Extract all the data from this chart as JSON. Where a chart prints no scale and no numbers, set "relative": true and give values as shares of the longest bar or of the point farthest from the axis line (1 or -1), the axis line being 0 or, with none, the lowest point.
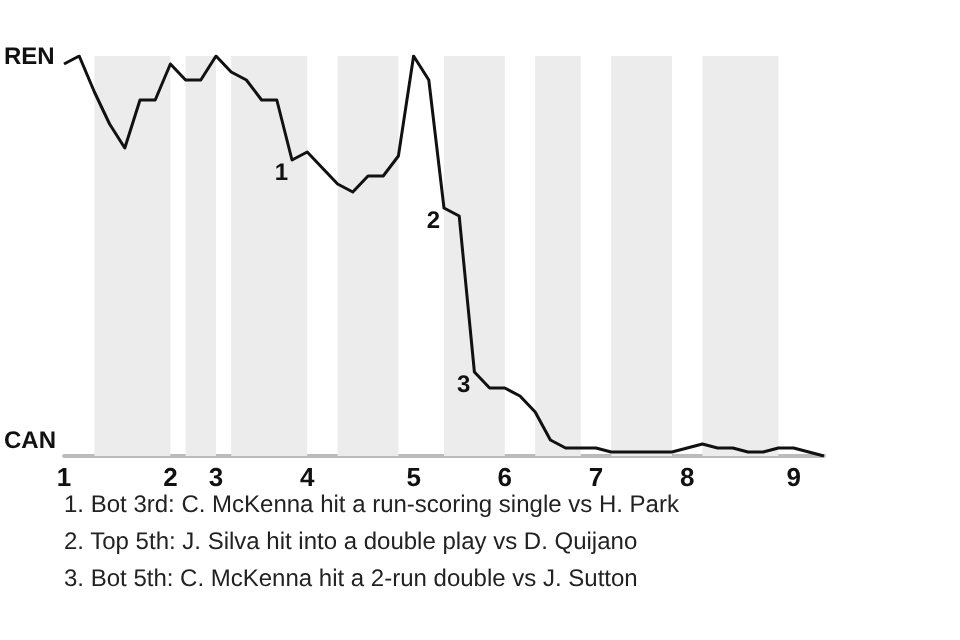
{
  "chart_data": {
    "type": "line",
    "relative": true,
    "categories": [
      "1",
      null,
      null,
      null,
      null,
      null,
      null,
      "2",
      null,
      null,
      "3",
      null,
      null,
      null,
      null,
      null,
      "4",
      null,
      null,
      null,
      null,
      null,
      null,
      "5",
      null,
      null,
      null,
      null,
      null,
      "6",
      null,
      null,
      null,
      null,
      null,
      "7",
      null,
      null,
      null,
      null,
      null,
      "8",
      null,
      null,
      null,
      null,
      null,
      null,
      "9",
      null,
      null
    ],
    "series": [
      {
        "color": "#111111",
        "values": [
          0.98,
          1,
          0.91,
          0.83,
          0.77,
          0.89,
          0.89,
          0.98,
          0.94,
          0.94,
          1,
          0.96,
          0.94,
          0.89,
          0.89,
          0.74,
          0.76,
          0.72,
          0.68,
          0.66,
          0.7,
          0.7,
          0.75,
          1,
          0.94,
          0.62,
          0.6,
          0.21,
          0.17,
          0.17,
          0.15,
          0.11,
          0.04,
          0.02,
          0.02,
          0.02,
          0.01,
          0.01,
          0.01,
          0.01,
          0.01,
          0.02,
          0.03,
          0.02,
          0.02,
          0.01,
          0.01,
          0.02,
          0.02,
          0.01,
          0
        ]
      }
    ],
    "marker": "none",
    "line_style": "solid",
    "annotations": [
      "REN",
      "CAN",
      {
        "text": "1",
        "y": 0.74
      },
      {
        "text": "2",
        "y": 0.62
      },
      {
        "text": "3",
        "y": 0.21
      },
      "1. Bot 3rd: C. McKenna hit a run-scoring single vs H. Park",
      "2. Top 5th: J. Silva hit into a double play vs D. Quijano",
      "3. Bot 5th: C. McKenna hit a 2-run double vs J. Sutton"
    ]
  }
}
